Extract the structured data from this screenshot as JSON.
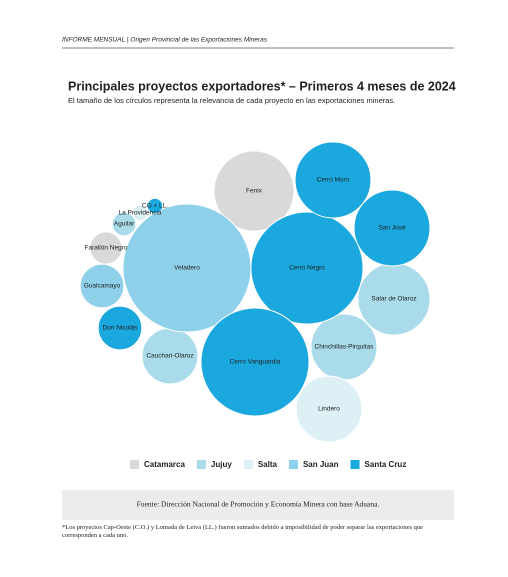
{
  "header": "INFORME MENSUAL | Origen Provincial de las Exportaciones Mineras",
  "chart_data": {
    "type": "bubble",
    "title": "Principales proyectos exportadores* – Primeros 4 meses de 2024",
    "subtitle": "El tamaño de los círculos representa la relevancia de cada proyecto en las exportaciones mineras.",
    "series": [
      {
        "name": "Catamarca",
        "color": "#d9d9d9",
        "labels": [
          "Fenix",
          "Farallón Negro"
        ],
        "values": [
          160,
          26
        ]
      },
      {
        "name": "Jujuy",
        "color": "#a9dbea",
        "labels": [
          "Salar de Olaroz",
          "Chinchillas-Pirquitas",
          "Cauchari-Olaroz",
          "Aguilar"
        ],
        "values": [
          130,
          109,
          78,
          14
        ]
      },
      {
        "name": "Salta",
        "color": "#dcf0f6",
        "labels": [
          "Lindero",
          "La Providencia"
        ],
        "values": [
          109,
          6
        ]
      },
      {
        "name": "San Juan",
        "color": "#8fd1ea",
        "labels": [
          "Veladero",
          "Gualcamayo"
        ],
        "values": [
          410,
          48
        ]
      },
      {
        "name": "Santa Cruz",
        "color": "#1ba8df",
        "labels": [
          "Cerro Negro",
          "Cerro Vanguardia",
          "Cerro Moro",
          "San José",
          "Don Nicolás",
          "CO + LL."
        ],
        "values": [
          314,
          292,
          144,
          144,
          48,
          6
        ]
      }
    ]
  },
  "source": "Fuente: Dirección Nacional de Promoción y Economía Minera con base Aduana.",
  "footnote": "*Los proyectos Cap-Oeste (C.O.) y  Lomada de Leiva  (LL.) fueron sumados debido a  imposibilidad de poder separar las exportaciones que corresponden a cada uno."
}
